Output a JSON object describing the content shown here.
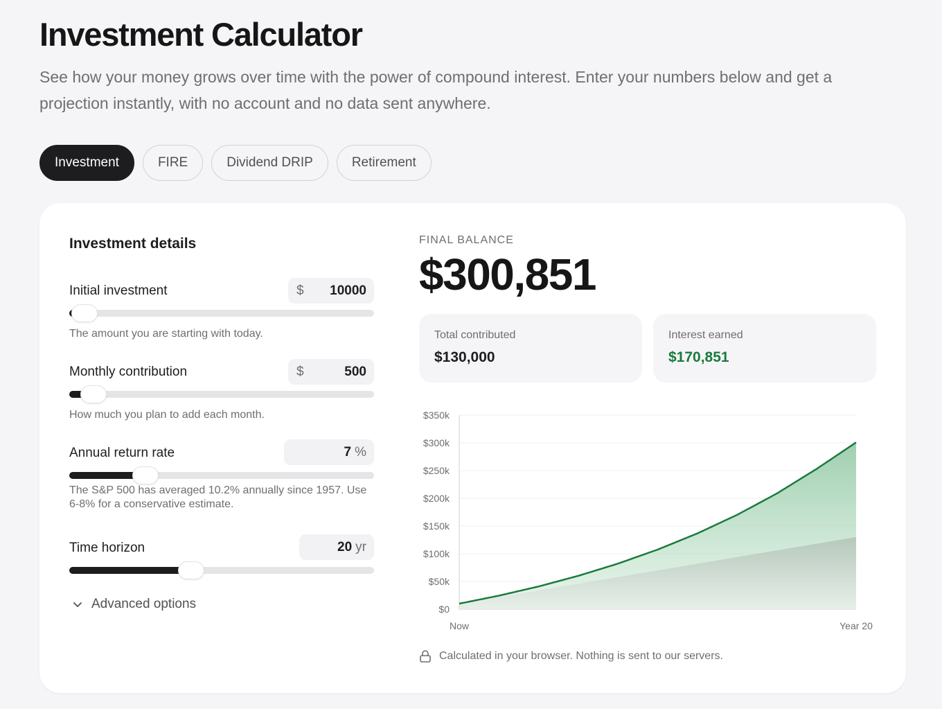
{
  "header": {
    "title": "Investment Calculator",
    "subtitle": "See how your money grows over time with the power of compound interest. Enter your numbers below and get a projection instantly, with no account and no data sent anywhere."
  },
  "tabs": [
    {
      "label": "Investment",
      "active": true
    },
    {
      "label": "FIRE",
      "active": false
    },
    {
      "label": "Dividend DRIP",
      "active": false
    },
    {
      "label": "Retirement",
      "active": false
    }
  ],
  "inputs": {
    "section_title": "Investment details",
    "initial": {
      "label": "Initial investment",
      "prefix": "$",
      "value": "10000",
      "hint": "The amount you are starting with today.",
      "slider_fraction": 0.05
    },
    "monthly": {
      "label": "Monthly contribution",
      "prefix": "$",
      "value": "500",
      "hint": "How much you plan to add each month.",
      "slider_fraction": 0.08
    },
    "rate": {
      "label": "Annual return rate",
      "value": "7",
      "suffix": "%",
      "hint": "The S&P 500 has averaged 10.2% annually since 1957. Use 6-8% for a conservative estimate.",
      "slider_fraction": 0.25
    },
    "horizon": {
      "label": "Time horizon",
      "value": "20",
      "suffix": "yr",
      "slider_fraction": 0.4
    },
    "advanced_label": "Advanced options"
  },
  "results": {
    "final_label": "FINAL BALANCE",
    "final_value": "$300,851",
    "contributed_label": "Total contributed",
    "contributed_value": "$130,000",
    "interest_label": "Interest earned",
    "interest_value": "$170,851",
    "privacy_note": "Calculated in your browser. Nothing is sent to our servers."
  },
  "colors": {
    "accent_green": "#1a7a3c",
    "active_tab": "#1d1d1f"
  },
  "chart_data": {
    "type": "area",
    "x_start_label": "Now",
    "x_end_label": "Year 20",
    "y_tick_labels": [
      "$0",
      "$50k",
      "$100k",
      "$150k",
      "$200k",
      "$250k",
      "$300k",
      "$350k"
    ],
    "ylim": [
      0,
      350000
    ],
    "x": [
      0,
      2,
      4,
      6,
      8,
      10,
      12,
      14,
      16,
      18,
      20
    ],
    "series": [
      {
        "values": [
          10000,
          24430,
          41010,
          60210,
          82200,
          107530,
          136660,
          170110,
          208570,
          252810,
          300851
        ]
      },
      {
        "values": [
          10000,
          22000,
          34000,
          46000,
          58000,
          70000,
          82000,
          94000,
          106000,
          118000,
          130000
        ]
      }
    ],
    "grid": true
  }
}
